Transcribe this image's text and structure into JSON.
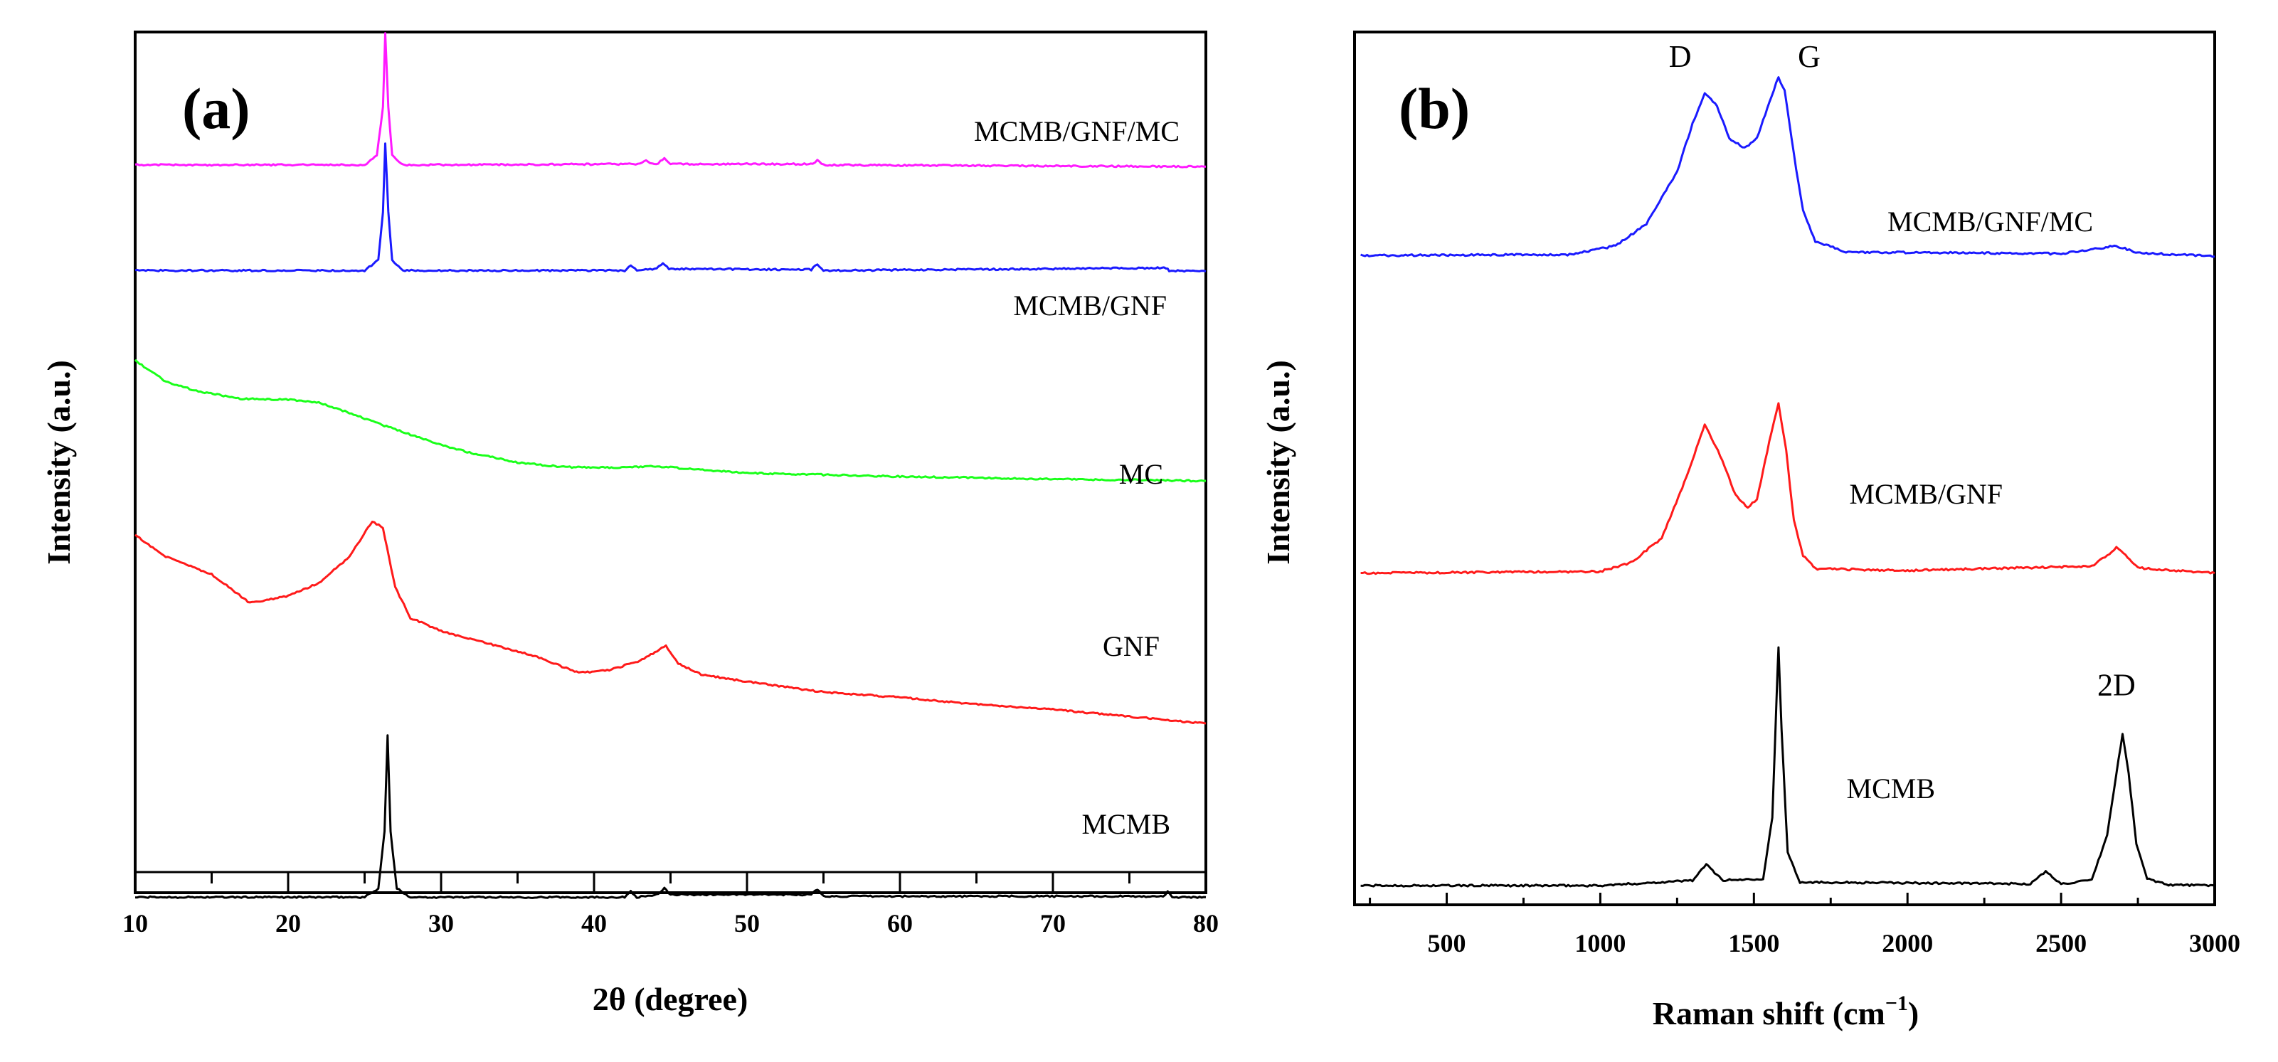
{
  "figure": {
    "colors": {
      "MCMB": "#000000",
      "GNF": "#ff1a1a",
      "MC": "#1aff1a",
      "MCMB/GNF": "#1a1aff",
      "MCMB/GNF/MC": "#ff1aff"
    }
  },
  "chart_data": [
    {
      "type": "line",
      "panel_label": "(a)",
      "xlabel": "2θ (degree)",
      "ylabel": "Intensity (a.u.)",
      "xlim": [
        10,
        80
      ],
      "ylim": [
        0,
        100
      ],
      "xticks": [
        10,
        20,
        30,
        40,
        50,
        60,
        70,
        80
      ],
      "yticks_shown": false,
      "grid": false,
      "series": [
        {
          "name": "MCMB",
          "label": "MCMB",
          "color": "#000000",
          "points": [
            [
              10,
              2.5
            ],
            [
              20,
              2.5
            ],
            [
              25,
              2.5
            ],
            [
              25.9,
              3.5
            ],
            [
              26.3,
              10
            ],
            [
              26.5,
              21
            ],
            [
              26.7,
              10
            ],
            [
              27.1,
              3.5
            ],
            [
              28,
              2.5
            ],
            [
              42,
              2.5
            ],
            [
              42.4,
              3.2
            ],
            [
              42.8,
              2.5
            ],
            [
              44.2,
              2.8
            ],
            [
              44.6,
              3.5
            ],
            [
              45,
              2.8
            ],
            [
              54.2,
              2.8
            ],
            [
              54.6,
              3.4
            ],
            [
              55,
              2.6
            ],
            [
              77.2,
              2.6
            ],
            [
              77.5,
              3.1
            ],
            [
              77.8,
              2.5
            ],
            [
              80,
              2.5
            ]
          ]
        },
        {
          "name": "GNF",
          "label": "GNF",
          "color": "#ff1a1a",
          "points": [
            [
              10,
              44
            ],
            [
              12,
              41.5
            ],
            [
              15,
              39.5
            ],
            [
              17.5,
              36.2
            ],
            [
              20,
              37
            ],
            [
              22,
              38.5
            ],
            [
              24,
              41.5
            ],
            [
              25.5,
              45.6
            ],
            [
              26.2,
              44.8
            ],
            [
              27,
              38
            ],
            [
              28,
              34.5
            ],
            [
              30,
              33
            ],
            [
              33,
              31.6
            ],
            [
              36,
              30.2
            ],
            [
              39,
              28.2
            ],
            [
              41,
              28.5
            ],
            [
              43,
              29.6
            ],
            [
              44.7,
              31.3
            ],
            [
              45.5,
              29.3
            ],
            [
              47,
              28
            ],
            [
              50,
              27.2
            ],
            [
              55,
              26
            ],
            [
              60,
              25.4
            ],
            [
              65,
              24.6
            ],
            [
              70,
              24
            ],
            [
              75,
              23.2
            ],
            [
              80,
              22.4
            ]
          ]
        },
        {
          "name": "MC",
          "label": "MC",
          "color": "#1aff1a",
          "points": [
            [
              10,
              64
            ],
            [
              12,
              61.6
            ],
            [
              14,
              60.5
            ],
            [
              17,
              59.6
            ],
            [
              20,
              59.5
            ],
            [
              22,
              59.2
            ],
            [
              24,
              58
            ],
            [
              26,
              56.7
            ],
            [
              28,
              55.5
            ],
            [
              30,
              54.3
            ],
            [
              32,
              53.4
            ],
            [
              35,
              52.3
            ],
            [
              38,
              51.8
            ],
            [
              41,
              51.7
            ],
            [
              44,
              51.9
            ],
            [
              46,
              51.6
            ],
            [
              50,
              51.1
            ],
            [
              55,
              50.9
            ],
            [
              60,
              50.7
            ],
            [
              70,
              50.4
            ],
            [
              80,
              50.2
            ]
          ]
        },
        {
          "name": "MCMB/GNF",
          "label": "MCMB/GNF",
          "color": "#1a1aff",
          "points": [
            [
              10,
              74.3
            ],
            [
              20,
              74.3
            ],
            [
              25,
              74.3
            ],
            [
              25.9,
              75.5
            ],
            [
              26.2,
              81
            ],
            [
              26.35,
              88.8
            ],
            [
              26.55,
              81
            ],
            [
              26.8,
              75.5
            ],
            [
              27.5,
              74.3
            ],
            [
              42,
              74.3
            ],
            [
              42.4,
              74.9
            ],
            [
              42.8,
              74.3
            ],
            [
              44.1,
              74.5
            ],
            [
              44.5,
              75.2
            ],
            [
              44.9,
              74.5
            ],
            [
              54.2,
              74.4
            ],
            [
              54.6,
              75
            ],
            [
              55,
              74.3
            ],
            [
              77.4,
              74.6
            ],
            [
              77.6,
              74.3
            ],
            [
              80,
              74.2
            ]
          ]
        },
        {
          "name": "MCMB/GNF/MC",
          "label": "MCMB/GNF/MC",
          "color": "#ff1aff",
          "points": [
            [
              10,
              86.4
            ],
            [
              20,
              86.4
            ],
            [
              25,
              86.4
            ],
            [
              25.8,
              87.5
            ],
            [
              26.2,
              93
            ],
            [
              26.35,
              101.5
            ],
            [
              26.55,
              93
            ],
            [
              26.8,
              87.5
            ],
            [
              27.5,
              86.4
            ],
            [
              43,
              86.5
            ],
            [
              43.4,
              86.9
            ],
            [
              43.8,
              86.5
            ],
            [
              44.2,
              86.6
            ],
            [
              44.6,
              87.2
            ],
            [
              45,
              86.5
            ],
            [
              54.3,
              86.5
            ],
            [
              54.6,
              87
            ],
            [
              55,
              86.4
            ],
            [
              80,
              86.2
            ]
          ]
        }
      ]
    },
    {
      "type": "line",
      "panel_label": "(b)",
      "xlabel": "Raman shift (cm",
      "xlabel_superscript": "−1",
      "xlabel_suffix": ")",
      "ylabel": "Intensity (a.u.)",
      "xlim": [
        200,
        3000
      ],
      "ylim": [
        0,
        100
      ],
      "xticks": [
        500,
        1000,
        1500,
        2000,
        2500,
        3000
      ],
      "yticks_shown": false,
      "grid": false,
      "annotations": [
        {
          "text": "D",
          "x": 1260,
          "y": 96
        },
        {
          "text": "G",
          "x": 1680,
          "y": 96
        },
        {
          "text": "2D",
          "x": 2680,
          "y": 24
        }
      ],
      "series": [
        {
          "name": "MCMB",
          "label": "MCMB",
          "color": "#000000",
          "points": [
            [
              220,
              2.2
            ],
            [
              1000,
              2.2
            ],
            [
              1300,
              2.8
            ],
            [
              1345,
              4.6
            ],
            [
              1400,
              2.8
            ],
            [
              1530,
              3
            ],
            [
              1560,
              10
            ],
            [
              1575,
              25
            ],
            [
              1580,
              29.5
            ],
            [
              1590,
              20
            ],
            [
              1610,
              6
            ],
            [
              1650,
              2.6
            ],
            [
              2400,
              2.4
            ],
            [
              2450,
              3.8
            ],
            [
              2500,
              2.4
            ],
            [
              2600,
              2.8
            ],
            [
              2650,
              8
            ],
            [
              2680,
              15
            ],
            [
              2700,
              19.6
            ],
            [
              2720,
              15
            ],
            [
              2745,
              7
            ],
            [
              2780,
              3
            ],
            [
              2850,
              2.3
            ],
            [
              3000,
              2.2
            ]
          ]
        },
        {
          "name": "MCMB/GNF",
          "label": "MCMB/GNF",
          "color": "#ff1a1a",
          "points": [
            [
              220,
              38
            ],
            [
              1000,
              38.2
            ],
            [
              1100,
              39.2
            ],
            [
              1200,
              42
            ],
            [
              1280,
              49
            ],
            [
              1340,
              55
            ],
            [
              1390,
              51.5
            ],
            [
              1440,
              47
            ],
            [
              1480,
              45.5
            ],
            [
              1510,
              46.5
            ],
            [
              1550,
              53
            ],
            [
              1580,
              57.5
            ],
            [
              1605,
              52
            ],
            [
              1630,
              44
            ],
            [
              1660,
              40
            ],
            [
              1700,
              38.5
            ],
            [
              2000,
              38.3
            ],
            [
              2600,
              38.8
            ],
            [
              2650,
              40
            ],
            [
              2680,
              41
            ],
            [
              2710,
              40
            ],
            [
              2750,
              38.6
            ],
            [
              3000,
              38
            ]
          ]
        },
        {
          "name": "MCMB/GNF/MC",
          "label": "MCMB/GNF/MC",
          "color": "#1a1aff",
          "points": [
            [
              220,
              74.4
            ],
            [
              900,
              74.5
            ],
            [
              1050,
              75.5
            ],
            [
              1150,
              78
            ],
            [
              1250,
              84
            ],
            [
              1300,
              89.5
            ],
            [
              1340,
              93
            ],
            [
              1380,
              91.5
            ],
            [
              1420,
              87.8
            ],
            [
              1470,
              86.7
            ],
            [
              1510,
              87.8
            ],
            [
              1550,
              92
            ],
            [
              1580,
              94.8
            ],
            [
              1600,
              93.3
            ],
            [
              1630,
              86
            ],
            [
              1660,
              79.5
            ],
            [
              1700,
              76
            ],
            [
              1800,
              74.8
            ],
            [
              2500,
              74.6
            ],
            [
              2680,
              75.5
            ],
            [
              2750,
              74.7
            ],
            [
              3000,
              74.3
            ]
          ]
        }
      ]
    }
  ]
}
